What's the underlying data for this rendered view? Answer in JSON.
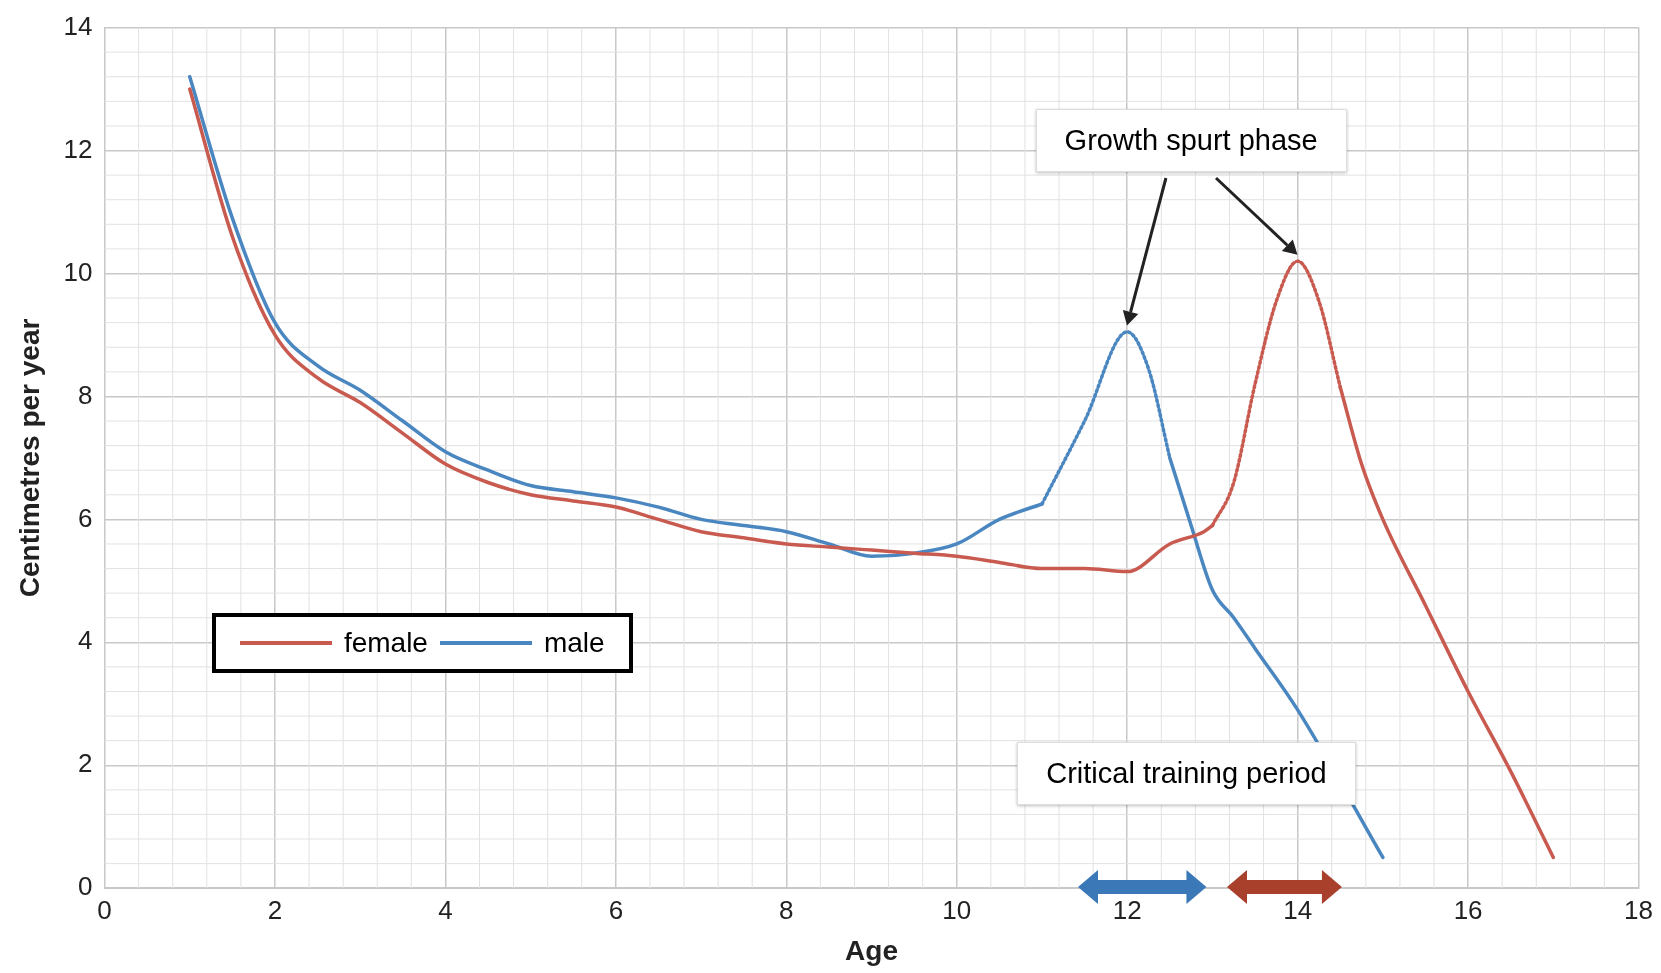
{
  "chart_data": {
    "type": "line",
    "xlabel": "Age",
    "ylabel": "Centimetres per year",
    "xlim": [
      0,
      18
    ],
    "xticks": [
      0,
      2,
      4,
      6,
      8,
      10,
      12,
      14,
      16,
      18
    ],
    "ylim": [
      0,
      14
    ],
    "yticks": [
      0,
      2,
      4,
      6,
      8,
      10,
      12,
      14
    ],
    "grid": true,
    "legend": "bottom left",
    "marker": "none",
    "series": [
      {
        "name": "female",
        "color": "#c85a4f",
        "line_style": "solid",
        "x": [
          1,
          1.5,
          2,
          2.5,
          3,
          3.5,
          4,
          4.5,
          5,
          5.5,
          6,
          6.5,
          7,
          7.5,
          8,
          8.5,
          9,
          9.5,
          10,
          10.5,
          11,
          11.5,
          12,
          12.5,
          12.9,
          13
        ],
        "values": [
          13,
          10.6,
          9,
          8.3,
          7.9,
          7.4,
          6.9,
          6.6,
          6.4,
          6.3,
          6.2,
          6,
          5.8,
          5.7,
          5.6,
          5.55,
          5.5,
          5.45,
          5.4,
          5.3,
          5.2,
          5.2,
          5.15,
          5.6,
          5.8,
          5.9
        ]
      },
      {
        "color": "#c85a4f",
        "line_style": "dotted",
        "x": [
          13,
          13.25,
          13.5,
          13.75,
          14,
          14.25,
          14.5
        ],
        "values": [
          5.9,
          6.6,
          8.2,
          9.55,
          10.2,
          9.55,
          8.15
        ]
      },
      {
        "color": "#c85a4f",
        "line_style": "solid",
        "x": [
          14.5,
          14.75,
          15,
          15.5,
          16,
          16.5,
          17
        ],
        "values": [
          8.15,
          6.9,
          6,
          4.6,
          3.2,
          1.9,
          0.5
        ]
      },
      {
        "name": "male",
        "color": "#4a86c0",
        "line_style": "solid",
        "x": [
          1,
          1.5,
          2,
          2.5,
          3,
          3.5,
          4,
          4.5,
          5,
          5.5,
          6,
          6.5,
          7,
          7.5,
          8,
          8.5,
          9,
          9.5,
          10,
          10.5,
          11
        ],
        "values": [
          13.2,
          10.9,
          9.2,
          8.5,
          8.1,
          7.6,
          7.1,
          6.8,
          6.55,
          6.45,
          6.35,
          6.2,
          6,
          5.9,
          5.8,
          5.6,
          5.4,
          5.45,
          5.6,
          6,
          6.25
        ]
      },
      {
        "color": "#4a86c0",
        "line_style": "dotted",
        "x": [
          11,
          11.5,
          12,
          12.25,
          12.5
        ],
        "values": [
          6.25,
          7.6,
          9.05,
          8.45,
          7
        ]
      },
      {
        "color": "#4a86c0",
        "line_style": "solid",
        "x": [
          12.5,
          12.75,
          13,
          13.25,
          13.5,
          14,
          15
        ],
        "values": [
          7,
          5.9,
          4.85,
          4.4,
          3.9,
          2.9,
          0.5
        ]
      }
    ],
    "annotations": [
      "Growth spurt phase",
      "Critical training period"
    ]
  }
}
